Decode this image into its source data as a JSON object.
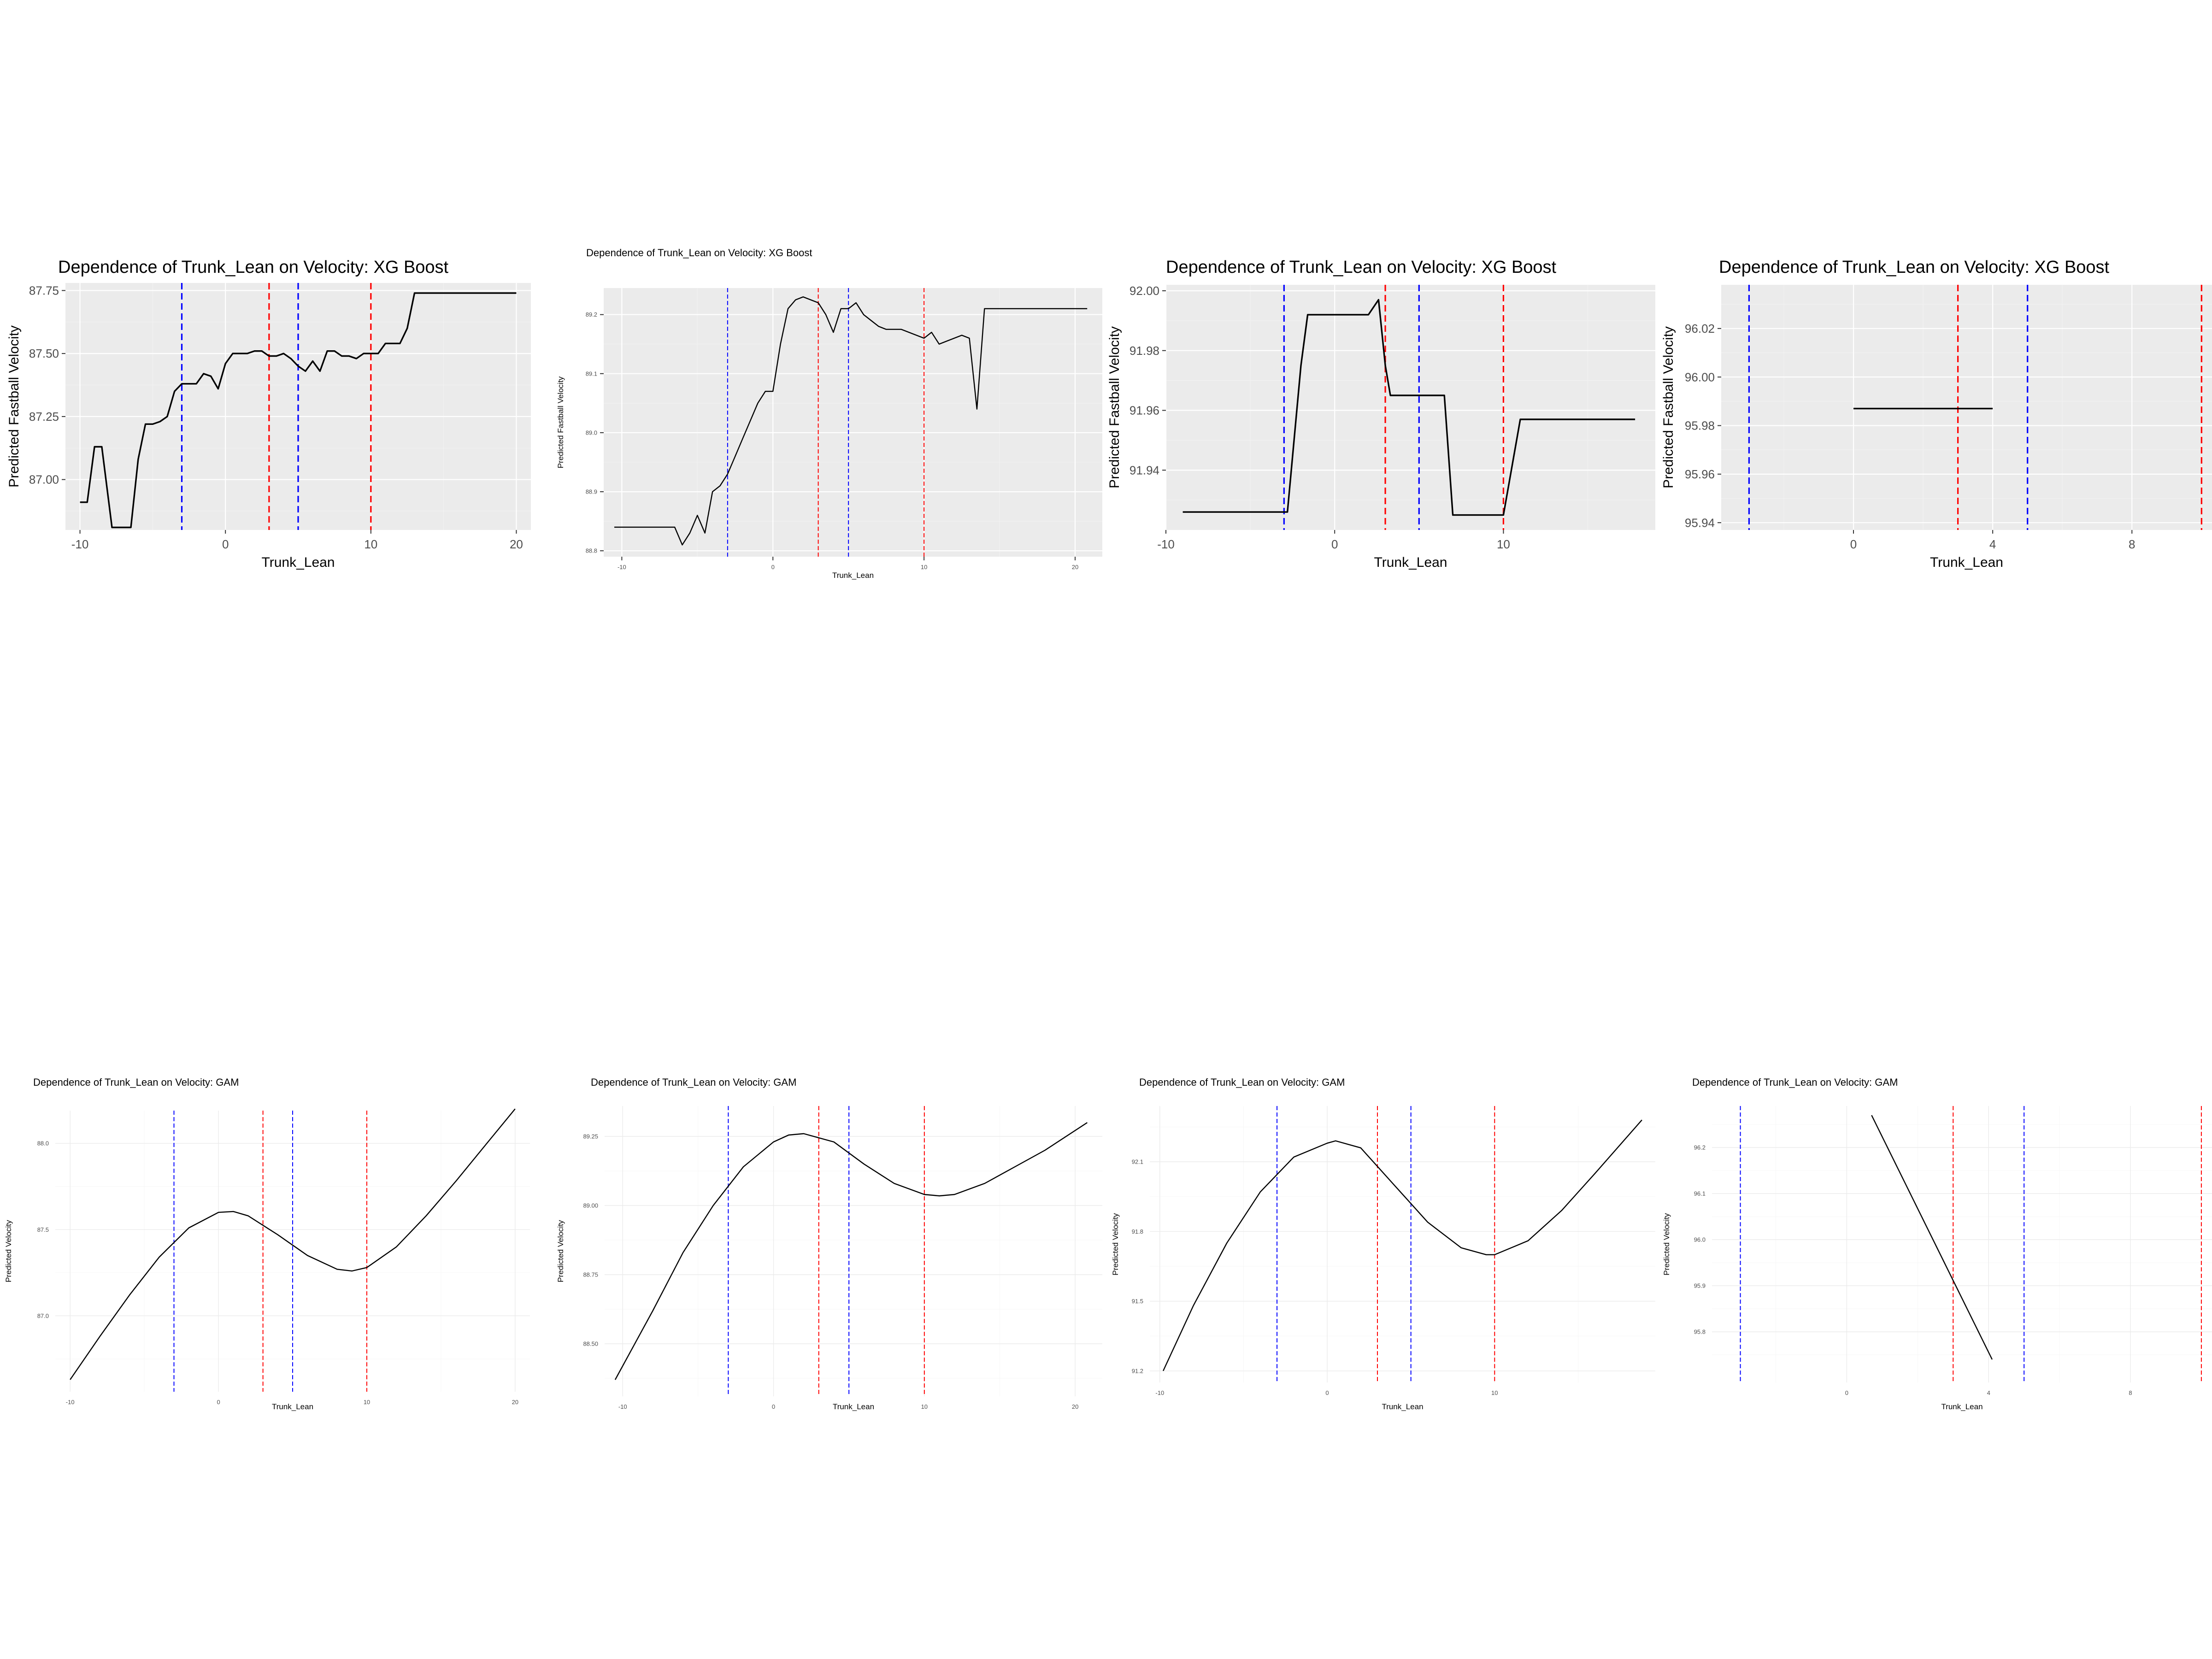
{
  "chart_data": [
    {
      "type": "line",
      "style": "gray",
      "title": "Dependence of Trunk_Lean on Velocity: XG Boost",
      "xlabel": "Trunk_Lean",
      "ylabel": "Predicted Fastball Velocity",
      "xlim": [
        -11,
        21
      ],
      "ylim": [
        86.8,
        87.78
      ],
      "xticks": [
        -10,
        0,
        10,
        20
      ],
      "yticks": [
        87.0,
        87.25,
        87.5,
        87.75
      ],
      "xtick_labels": [
        "-10",
        "0",
        "10",
        "20"
      ],
      "ytick_labels": [
        "87.00",
        "87.25",
        "87.50",
        "87.75"
      ],
      "vlines": [
        {
          "x": -3,
          "color": "#0000ff"
        },
        {
          "x": 3,
          "color": "#ff0000"
        },
        {
          "x": 5,
          "color": "#0000ff"
        },
        {
          "x": 10,
          "color": "#ff0000"
        }
      ],
      "series": [
        {
          "color": "#000000",
          "x": [
            -10,
            -9.5,
            -9,
            -8.5,
            -7.8,
            -7,
            -6.5,
            -6,
            -5.5,
            -5,
            -4.5,
            -4,
            -3.5,
            -3,
            -2.5,
            -2,
            -1.5,
            -1,
            -0.5,
            0,
            0.5,
            1,
            1.5,
            2,
            2.5,
            3,
            3.5,
            4,
            4.5,
            5,
            5.5,
            6,
            6.5,
            7,
            7.5,
            8,
            8.5,
            9,
            9.5,
            10,
            10.5,
            11,
            11.5,
            12,
            12.5,
            13,
            13.5,
            14,
            14.5,
            15,
            15.5,
            16,
            16.5,
            17,
            17.5,
            18,
            18.5,
            19,
            19.5,
            20
          ],
          "y": [
            86.91,
            86.91,
            87.13,
            87.13,
            86.81,
            86.81,
            86.81,
            87.08,
            87.22,
            87.22,
            87.23,
            87.25,
            87.35,
            87.38,
            87.38,
            87.38,
            87.42,
            87.41,
            87.36,
            87.46,
            87.5,
            87.5,
            87.5,
            87.51,
            87.51,
            87.49,
            87.49,
            87.5,
            87.48,
            87.45,
            87.43,
            87.47,
            87.43,
            87.51,
            87.51,
            87.49,
            87.49,
            87.48,
            87.5,
            87.5,
            87.5,
            87.54,
            87.54,
            87.54,
            87.6,
            87.74,
            87.74,
            87.74,
            87.74,
            87.74,
            87.74,
            87.74,
            87.74,
            87.74,
            87.74,
            87.74,
            87.74,
            87.74,
            87.74,
            87.74
          ]
        }
      ]
    },
    {
      "type": "line",
      "style": "gray",
      "title": "Dependence of Trunk_Lean on Velocity: XG Boost",
      "xlabel": "Trunk_Lean",
      "ylabel": "Predicted Fastball Velocity",
      "xlim": [
        -11.2,
        21.8
      ],
      "ylim": [
        88.79,
        89.245
      ],
      "xticks": [
        -10,
        0,
        10,
        20
      ],
      "yticks": [
        88.8,
        88.9,
        89.0,
        89.1,
        89.2
      ],
      "xtick_labels": [
        "-10",
        "0",
        "10",
        "20"
      ],
      "ytick_labels": [
        "88.8",
        "88.9",
        "89.0",
        "89.1",
        "89.2"
      ],
      "vlines": [
        {
          "x": -3,
          "color": "#0000ff"
        },
        {
          "x": 3,
          "color": "#ff0000"
        },
        {
          "x": 5,
          "color": "#0000ff"
        },
        {
          "x": 10,
          "color": "#ff0000"
        }
      ],
      "series": [
        {
          "color": "#000000",
          "x": [
            -10.5,
            -9,
            -8,
            -7,
            -6.5,
            -6,
            -5.5,
            -5,
            -4.5,
            -4,
            -3.5,
            -3,
            -2.5,
            -2,
            -1.5,
            -1,
            -0.5,
            0,
            0.5,
            1,
            1.5,
            2,
            2.5,
            3,
            3.5,
            4,
            4.5,
            5,
            5.5,
            6,
            6.5,
            7,
            7.5,
            8,
            8.5,
            9,
            9.5,
            10,
            10.5,
            11,
            11.5,
            12,
            12.5,
            13,
            13.5,
            14,
            14.5,
            15,
            16,
            17,
            18,
            19,
            20,
            20.8
          ],
          "y": [
            88.84,
            88.84,
            88.84,
            88.84,
            88.84,
            88.81,
            88.83,
            88.86,
            88.83,
            88.9,
            88.91,
            88.93,
            88.96,
            88.99,
            89.02,
            89.05,
            89.07,
            89.07,
            89.15,
            89.21,
            89.225,
            89.23,
            89.225,
            89.22,
            89.2,
            89.17,
            89.21,
            89.21,
            89.22,
            89.2,
            89.19,
            89.18,
            89.175,
            89.175,
            89.175,
            89.17,
            89.165,
            89.16,
            89.17,
            89.15,
            89.155,
            89.16,
            89.165,
            89.16,
            89.04,
            89.21,
            89.21,
            89.21,
            89.21,
            89.21,
            89.21,
            89.21,
            89.21,
            89.21
          ]
        }
      ]
    },
    {
      "type": "line",
      "style": "gray",
      "title": "Dependence of Trunk_Lean on Velocity: XG Boost",
      "xlabel": "Trunk_Lean",
      "ylabel": "Predicted Fastball Velocity",
      "xlim": [
        -10,
        19
      ],
      "ylim": [
        91.92,
        92.002
      ],
      "xticks": [
        -10,
        0,
        10
      ],
      "yticks": [
        91.94,
        91.96,
        91.98,
        92.0
      ],
      "xtick_labels": [
        "-10",
        "0",
        "10"
      ],
      "ytick_labels": [
        "91.94",
        "91.96",
        "91.98",
        "92.00"
      ],
      "vlines": [
        {
          "x": -3,
          "color": "#0000ff"
        },
        {
          "x": 3,
          "color": "#ff0000"
        },
        {
          "x": 5,
          "color": "#0000ff"
        },
        {
          "x": 10,
          "color": "#ff0000"
        }
      ],
      "series": [
        {
          "color": "#000000",
          "x": [
            -9,
            -6,
            -4,
            -2.8,
            -2,
            -1.6,
            0,
            2,
            2.6,
            3,
            3.3,
            4,
            5,
            6,
            6.5,
            7,
            8,
            9,
            10,
            11,
            12,
            14,
            16,
            17.8
          ],
          "y": [
            91.926,
            91.926,
            91.926,
            91.926,
            91.975,
            91.992,
            91.992,
            91.992,
            91.997,
            91.975,
            91.965,
            91.965,
            91.965,
            91.965,
            91.965,
            91.925,
            91.925,
            91.925,
            91.925,
            91.957,
            91.957,
            91.957,
            91.957,
            91.957
          ]
        }
      ]
    },
    {
      "type": "line",
      "style": "gray",
      "title": "Dependence of Trunk_Lean on Velocity: XG Boost",
      "xlabel": "Trunk_Lean",
      "ylabel": "Predicted Fastball Velocity",
      "xlim": [
        -3.8,
        10.3
      ],
      "ylim": [
        95.937,
        96.038
      ],
      "xticks": [
        0,
        4,
        8
      ],
      "yticks": [
        95.94,
        95.96,
        95.98,
        96.0,
        96.02
      ],
      "xtick_labels": [
        "0",
        "4",
        "8"
      ],
      "ytick_labels": [
        "95.94",
        "95.96",
        "95.98",
        "96.00",
        "96.02"
      ],
      "vlines": [
        {
          "x": -3,
          "color": "#0000ff"
        },
        {
          "x": 3,
          "color": "#ff0000"
        },
        {
          "x": 5,
          "color": "#0000ff"
        },
        {
          "x": 10,
          "color": "#ff0000"
        }
      ],
      "series": [
        {
          "color": "#000000",
          "x": [
            0,
            4
          ],
          "y": [
            95.987,
            95.987
          ]
        }
      ]
    },
    {
      "type": "line",
      "style": "minimal",
      "title": "Dependence of Trunk_Lean on Velocity: GAM",
      "xlabel": "Trunk_Lean",
      "ylabel": "Predicted Velocity",
      "xlim": [
        -11,
        21
      ],
      "ylim": [
        86.56,
        88.19
      ],
      "xticks": [
        -10,
        0,
        10,
        20
      ],
      "yticks": [
        87.0,
        87.5,
        88.0
      ],
      "xtick_labels": [
        "-10",
        "0",
        "10",
        "20"
      ],
      "ytick_labels": [
        "87.0",
        "87.5",
        "88.0"
      ],
      "vlines": [
        {
          "x": -3,
          "color": "#0000ff"
        },
        {
          "x": 3,
          "color": "#ff0000"
        },
        {
          "x": 5,
          "color": "#0000ff"
        },
        {
          "x": 10,
          "color": "#ff0000"
        }
      ],
      "series": [
        {
          "color": "#000000",
          "x": [
            -10,
            -8,
            -6,
            -4,
            -2,
            0,
            1,
            2,
            4,
            6,
            8,
            9,
            10,
            12,
            14,
            16,
            18,
            20
          ],
          "y": [
            86.63,
            86.88,
            87.12,
            87.34,
            87.51,
            87.6,
            87.605,
            87.58,
            87.47,
            87.35,
            87.27,
            87.26,
            87.28,
            87.4,
            87.58,
            87.78,
            87.99,
            88.2
          ]
        }
      ]
    },
    {
      "type": "line",
      "style": "minimal",
      "title": "Dependence of Trunk_Lean on Velocity: GAM",
      "xlabel": "Trunk_Lean",
      "ylabel": "Predicted Velocity",
      "xlim": [
        -11.2,
        21.8
      ],
      "ylim": [
        88.31,
        89.36
      ],
      "xticks": [
        -10,
        0,
        10,
        20
      ],
      "yticks": [
        88.5,
        88.75,
        89.0,
        89.25
      ],
      "xtick_labels": [
        "-10",
        "0",
        "10",
        "20"
      ],
      "ytick_labels": [
        "88.50",
        "88.75",
        "89.00",
        "89.25"
      ],
      "vlines": [
        {
          "x": -3,
          "color": "#0000ff"
        },
        {
          "x": 3,
          "color": "#ff0000"
        },
        {
          "x": 5,
          "color": "#0000ff"
        },
        {
          "x": 10,
          "color": "#ff0000"
        }
      ],
      "series": [
        {
          "color": "#000000",
          "x": [
            -10.5,
            -8,
            -6,
            -4,
            -2,
            0,
            1,
            2,
            4,
            6,
            8,
            10,
            11,
            12,
            14,
            16,
            18,
            20.8
          ],
          "y": [
            88.37,
            88.62,
            88.83,
            89.0,
            89.14,
            89.23,
            89.255,
            89.26,
            89.23,
            89.15,
            89.08,
            89.04,
            89.035,
            89.04,
            89.08,
            89.14,
            89.2,
            89.3
          ]
        }
      ]
    },
    {
      "type": "line",
      "style": "minimal",
      "title": "Dependence of Trunk_Lean on Velocity: GAM",
      "xlabel": "Trunk_Lean",
      "ylabel": "Predicted Velocity",
      "xlim": [
        -10.6,
        19.6
      ],
      "ylim": [
        91.15,
        92.34
      ],
      "xticks": [
        -10,
        0,
        10
      ],
      "yticks": [
        91.2,
        91.5,
        91.8,
        92.1
      ],
      "xtick_labels": [
        "-10",
        "0",
        "10"
      ],
      "ytick_labels": [
        "91.2",
        "91.5",
        "91.8",
        "92.1"
      ],
      "vlines": [
        {
          "x": -3,
          "color": "#0000ff"
        },
        {
          "x": 3,
          "color": "#ff0000"
        },
        {
          "x": 5,
          "color": "#0000ff"
        },
        {
          "x": 10,
          "color": "#ff0000"
        }
      ],
      "series": [
        {
          "color": "#000000",
          "x": [
            -9.8,
            -8,
            -6,
            -4,
            -2,
            0,
            0.5,
            2,
            4,
            6,
            8,
            9.5,
            10,
            12,
            14,
            16,
            18.8
          ],
          "y": [
            91.2,
            91.48,
            91.75,
            91.97,
            92.12,
            92.18,
            92.19,
            92.16,
            92.0,
            91.84,
            91.73,
            91.7,
            91.7,
            91.76,
            91.89,
            92.05,
            92.28
          ]
        }
      ]
    },
    {
      "type": "line",
      "style": "minimal",
      "title": "Dependence of Trunk_Lean on Velocity: GAM",
      "xlabel": "Trunk_Lean",
      "ylabel": "Predicted Velocity",
      "xlim": [
        -3.8,
        10.3
      ],
      "ylim": [
        95.69,
        96.29
      ],
      "xticks": [
        0,
        4,
        8
      ],
      "yticks": [
        95.8,
        95.9,
        96.0,
        96.1,
        96.2
      ],
      "xtick_labels": [
        "0",
        "4",
        "8"
      ],
      "ytick_labels": [
        "95.8",
        "95.9",
        "96.0",
        "96.1",
        "96.2"
      ],
      "vlines": [
        {
          "x": -3,
          "color": "#0000ff"
        },
        {
          "x": 3,
          "color": "#ff0000"
        },
        {
          "x": 5,
          "color": "#0000ff"
        },
        {
          "x": 10,
          "color": "#ff0000"
        }
      ],
      "series": [
        {
          "color": "#000000",
          "x": [
            0.7,
            4.1
          ],
          "y": [
            96.27,
            95.74
          ]
        }
      ]
    }
  ]
}
